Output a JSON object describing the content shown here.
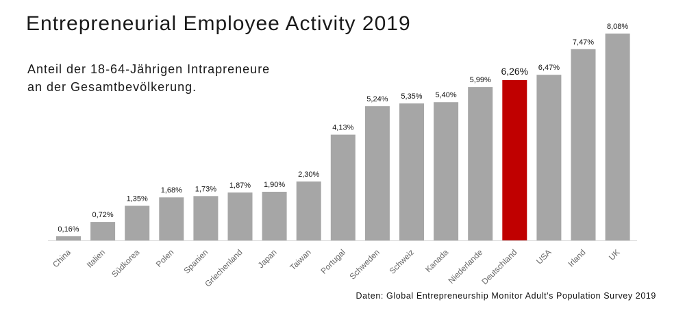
{
  "chart_data": {
    "type": "bar",
    "title": "Entrepreneurial Employee Activity 2019",
    "subtitle_lines": [
      "Anteil der 18-64-Jährigen Intrapreneure",
      "an der Gesamtbevölkerung."
    ],
    "source": "Daten: Global Entrepreneurship Monitor Adult's Population Survey 2019",
    "categories": [
      "China",
      "Italien",
      "Südkorea",
      "Polen",
      "Spanien",
      "Griechenland",
      "Japan",
      "Taiwan",
      "Portugal",
      "Schweden",
      "Schweiz",
      "Kanada",
      "Niederlande",
      "Deutschland",
      "USA",
      "Irland",
      "UK"
    ],
    "values": [
      0.16,
      0.72,
      1.35,
      1.68,
      1.73,
      1.87,
      1.9,
      2.3,
      4.13,
      5.24,
      5.35,
      5.4,
      5.99,
      6.26,
      6.47,
      7.47,
      8.08
    ],
    "value_labels": [
      "0,16%",
      "0,72%",
      "1,35%",
      "1,68%",
      "1,73%",
      "1,87%",
      "1,90%",
      "2,30%",
      "4,13%",
      "5,24%",
      "5,35%",
      "5,40%",
      "5,99%",
      "6,26%",
      "6,47%",
      "7,47%",
      "8,08%"
    ],
    "highlight_category": "Deutschland",
    "colors": {
      "bar": "#a6a6a6",
      "highlight": "#c00000"
    },
    "ylim": [
      0,
      8.08
    ],
    "grid": false,
    "legend": "none"
  }
}
